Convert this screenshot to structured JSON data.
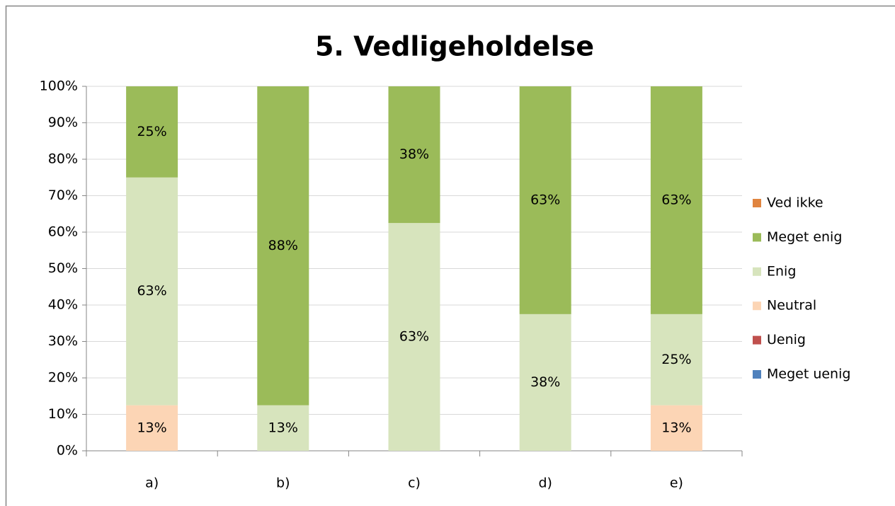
{
  "chart_data": {
    "type": "stacked_bar",
    "title": "5. Vedligeholdelse",
    "categories": [
      "a)",
      "b)",
      "c)",
      "d)",
      "e)"
    ],
    "series": [
      {
        "name": "Meget uenig",
        "color": "#4f81bd",
        "values": [
          0,
          0,
          0,
          0,
          0
        ],
        "value_labels": [
          null,
          null,
          null,
          null,
          null
        ]
      },
      {
        "name": "Uenig",
        "color": "#c0504d",
        "values": [
          0,
          0,
          0,
          0,
          0
        ],
        "value_labels": [
          null,
          null,
          null,
          null,
          null
        ]
      },
      {
        "name": "Neutral",
        "color": "#fcd5b5",
        "values": [
          12.5,
          0,
          0,
          0,
          12.5
        ],
        "value_labels": [
          "13%",
          null,
          null,
          null,
          "13%"
        ]
      },
      {
        "name": "Enig",
        "color": "#d7e4bd",
        "values": [
          62.5,
          12.5,
          62.5,
          37.5,
          25
        ],
        "value_labels": [
          "63%",
          "13%",
          "63%",
          "38%",
          "25%"
        ]
      },
      {
        "name": "Meget enig",
        "color": "#9bbb59",
        "values": [
          25,
          87.5,
          37.5,
          62.5,
          62.5
        ],
        "value_labels": [
          "25%",
          "88%",
          "38%",
          "63%",
          "63%"
        ]
      },
      {
        "name": "Ved ikke",
        "color": "#e0843f",
        "values": [
          0,
          0,
          0,
          0,
          0
        ],
        "value_labels": [
          null,
          null,
          null,
          null,
          null
        ]
      }
    ],
    "ylim": [
      0,
      100
    ],
    "yticks": [
      {
        "value": 0,
        "label": "0%"
      },
      {
        "value": 10,
        "label": "10%"
      },
      {
        "value": 20,
        "label": "20%"
      },
      {
        "value": 30,
        "label": "30%"
      },
      {
        "value": 40,
        "label": "40%"
      },
      {
        "value": 50,
        "label": "50%"
      },
      {
        "value": 60,
        "label": "60%"
      },
      {
        "value": 70,
        "label": "70%"
      },
      {
        "value": 80,
        "label": "80%"
      },
      {
        "value": 90,
        "label": "90%"
      },
      {
        "value": 100,
        "label": "100%"
      }
    ],
    "grid": true,
    "legend": "right"
  }
}
